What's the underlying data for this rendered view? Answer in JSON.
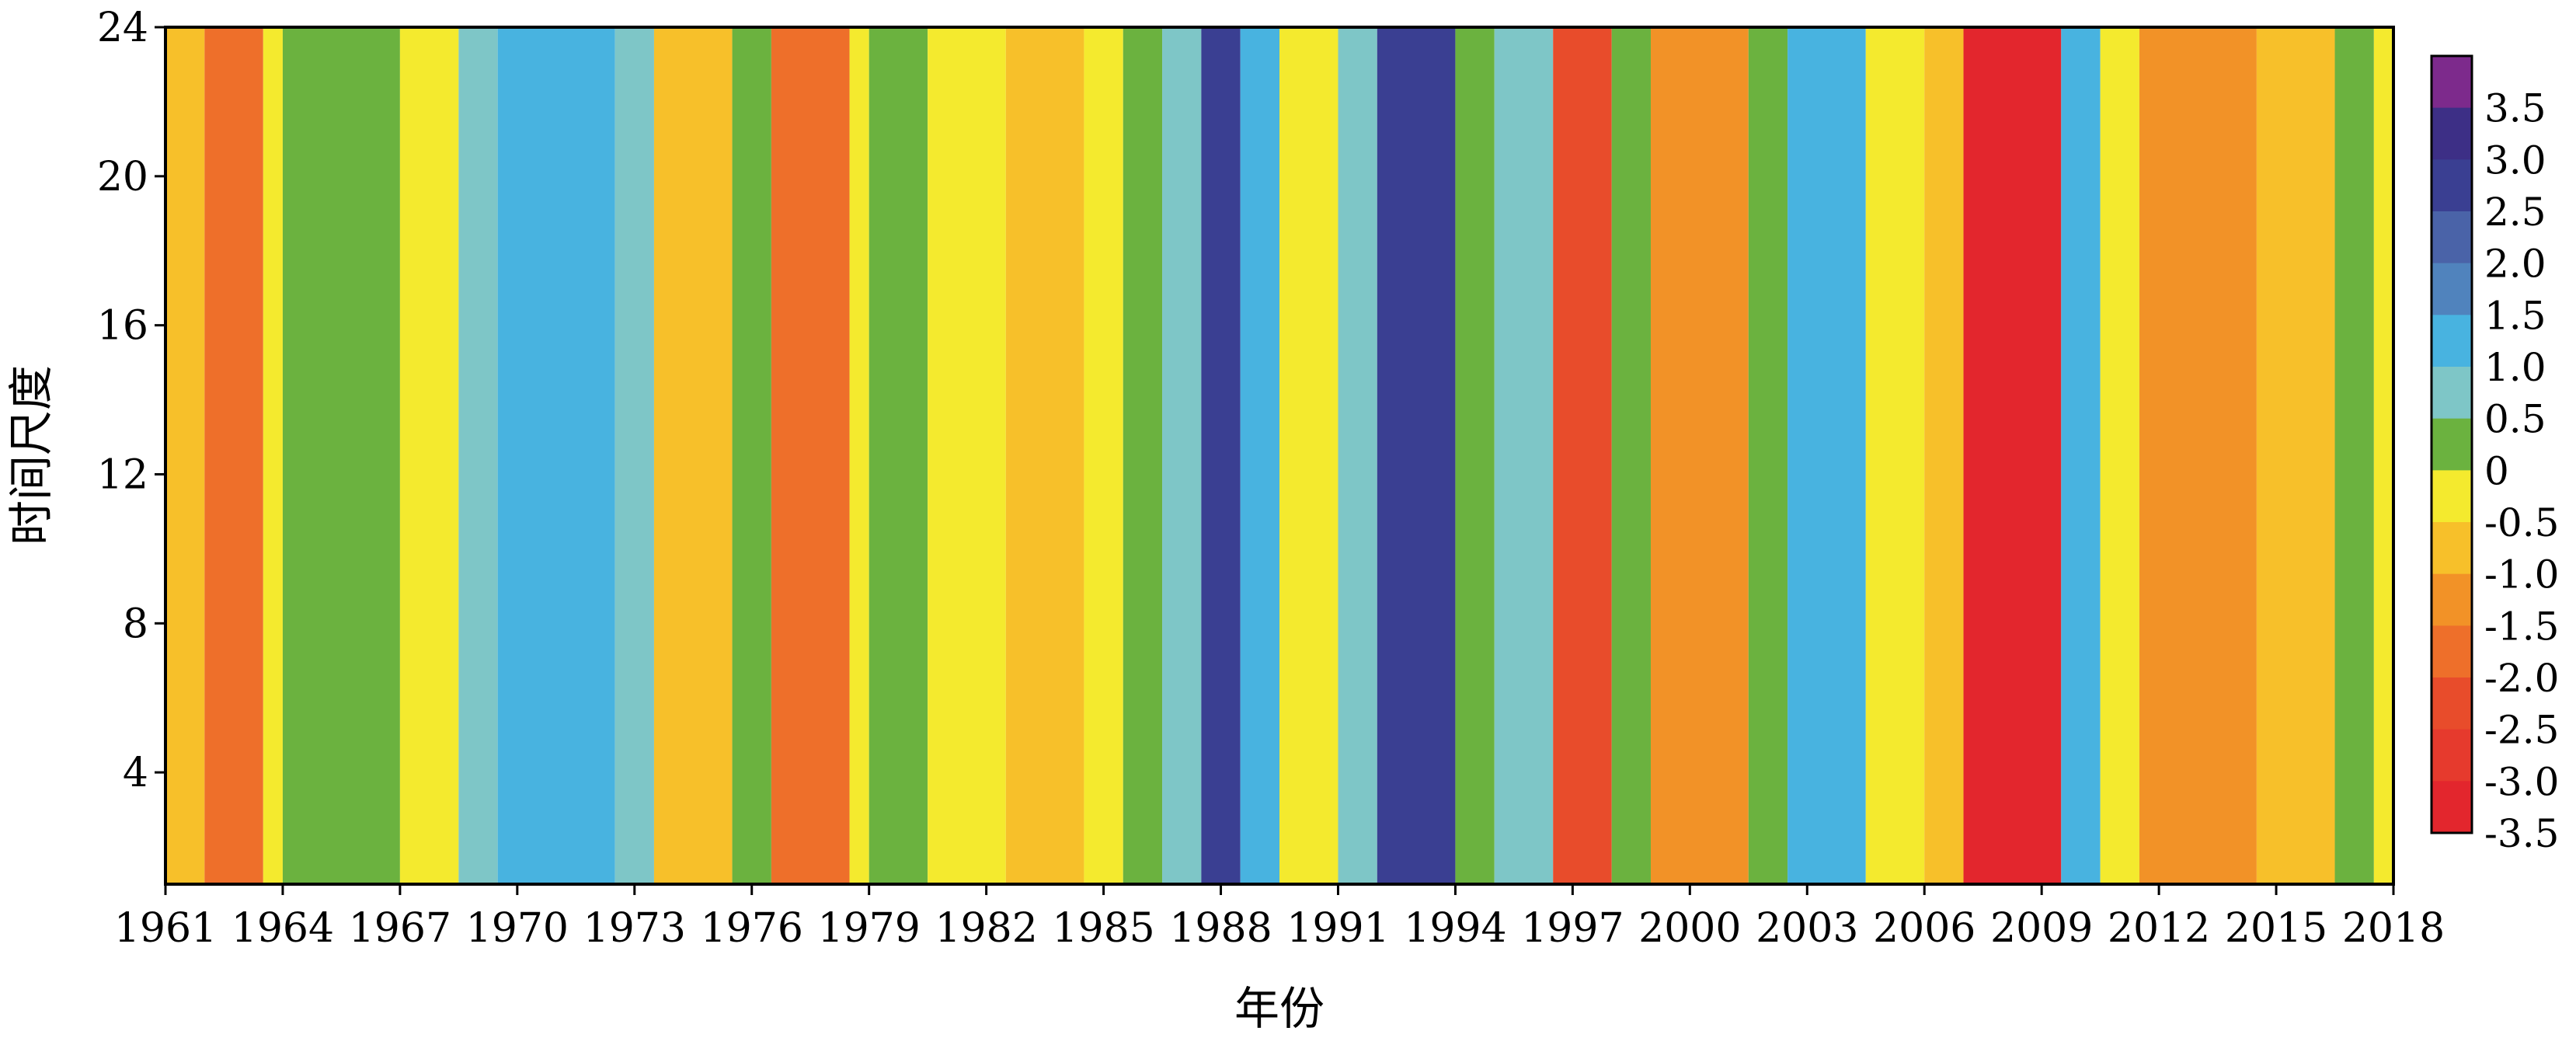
{
  "chart_data": {
    "type": "heatmap",
    "title": "",
    "xlabel": "年份",
    "ylabel": "时间尺度",
    "xlim": [
      1961,
      2018
    ],
    "ylim": [
      1,
      24
    ],
    "x_ticks": [
      "1961",
      "1964",
      "1967",
      "1970",
      "1973",
      "1976",
      "1979",
      "1982",
      "1985",
      "1988",
      "1991",
      "1994",
      "1997",
      "2000",
      "2003",
      "2006",
      "2009",
      "2012",
      "2015",
      "2018"
    ],
    "y_ticks": [
      "4",
      "8",
      "12",
      "16",
      "20",
      "24"
    ],
    "colorbar": {
      "labels": [
        "3.5",
        "3.0",
        "2.5",
        "2.0",
        "1.5",
        "1.0",
        "0.5",
        "0",
        "-0.5",
        "-1.0",
        "-1.5",
        "-2.0",
        "-2.5",
        "-3.0",
        "-3.5"
      ],
      "levels": [
        {
          "min": 3.5,
          "max": 4.0,
          "color": "#7d2a8c"
        },
        {
          "min": 3.0,
          "max": 3.5,
          "color": "#3d2f86"
        },
        {
          "min": 2.5,
          "max": 3.0,
          "color": "#3a3f92"
        },
        {
          "min": 2.0,
          "max": 2.5,
          "color": "#4a63a8"
        },
        {
          "min": 1.5,
          "max": 2.0,
          "color": "#5083bd"
        },
        {
          "min": 1.0,
          "max": 1.5,
          "color": "#48b3e0"
        },
        {
          "min": 0.5,
          "max": 1.0,
          "color": "#7ec6c7"
        },
        {
          "min": 0.0,
          "max": 0.5,
          "color": "#6bb23f"
        },
        {
          "min": -0.5,
          "max": 0.0,
          "color": "#f4ea2e"
        },
        {
          "min": -1.0,
          "max": -0.5,
          "color": "#f7c02a"
        },
        {
          "min": -1.5,
          "max": -1.0,
          "color": "#f29227"
        },
        {
          "min": -2.0,
          "max": -1.5,
          "color": "#ee6f2a"
        },
        {
          "min": -2.5,
          "max": -2.0,
          "color": "#e84c2b"
        },
        {
          "min": -3.0,
          "max": -2.5,
          "color": "#e63a2d"
        },
        {
          "min": -3.5,
          "max": -3.0,
          "color": "#e3262d"
        }
      ]
    },
    "anomaly_bands": [
      {
        "x_start": 1961.0,
        "x_end": 1962.0,
        "value": -0.8
      },
      {
        "x_start": 1962.0,
        "x_end": 1963.5,
        "value": -1.6
      },
      {
        "x_start": 1963.5,
        "x_end": 1964.0,
        "value": -0.2
      },
      {
        "x_start": 1964.0,
        "x_end": 1967.0,
        "value": 0.3
      },
      {
        "x_start": 1967.0,
        "x_end": 1968.5,
        "value": -0.3
      },
      {
        "x_start": 1968.5,
        "x_end": 1969.5,
        "value": 0.7
      },
      {
        "x_start": 1969.5,
        "x_end": 1972.5,
        "value": 1.2
      },
      {
        "x_start": 1972.5,
        "x_end": 1973.5,
        "value": 0.6
      },
      {
        "x_start": 1973.5,
        "x_end": 1975.5,
        "value": -0.9
      },
      {
        "x_start": 1975.5,
        "x_end": 1976.5,
        "value": 0.3
      },
      {
        "x_start": 1976.5,
        "x_end": 1978.5,
        "value": -1.8
      },
      {
        "x_start": 1978.5,
        "x_end": 1979.0,
        "value": -0.3
      },
      {
        "x_start": 1979.0,
        "x_end": 1980.5,
        "value": 0.3
      },
      {
        "x_start": 1980.5,
        "x_end": 1982.5,
        "value": -0.4
      },
      {
        "x_start": 1982.5,
        "x_end": 1984.5,
        "value": -0.7
      },
      {
        "x_start": 1984.5,
        "x_end": 1985.5,
        "value": -0.3
      },
      {
        "x_start": 1985.5,
        "x_end": 1986.5,
        "value": 0.3
      },
      {
        "x_start": 1986.5,
        "x_end": 1987.5,
        "value": 0.8
      },
      {
        "x_start": 1987.5,
        "x_end": 1988.5,
        "value": 2.6
      },
      {
        "x_start": 1988.5,
        "x_end": 1989.5,
        "value": 1.2
      },
      {
        "x_start": 1989.5,
        "x_end": 1991.0,
        "value": -0.3
      },
      {
        "x_start": 1991.0,
        "x_end": 1992.0,
        "value": 0.8
      },
      {
        "x_start": 1992.0,
        "x_end": 1994.0,
        "value": 2.7
      },
      {
        "x_start": 1994.0,
        "x_end": 1995.0,
        "value": 0.4
      },
      {
        "x_start": 1995.0,
        "x_end": 1996.5,
        "value": 0.7
      },
      {
        "x_start": 1996.5,
        "x_end": 1998.0,
        "value": -2.4
      },
      {
        "x_start": 1998.0,
        "x_end": 1999.0,
        "value": 0.3
      },
      {
        "x_start": 1999.0,
        "x_end": 2001.5,
        "value": -1.4
      },
      {
        "x_start": 2001.5,
        "x_end": 2002.5,
        "value": 0.3
      },
      {
        "x_start": 2002.5,
        "x_end": 2004.5,
        "value": 1.1
      },
      {
        "x_start": 2004.5,
        "x_end": 2006.0,
        "value": -0.4
      },
      {
        "x_start": 2006.0,
        "x_end": 2007.0,
        "value": -0.9
      },
      {
        "x_start": 2007.0,
        "x_end": 2009.5,
        "value": -3.1
      },
      {
        "x_start": 2009.5,
        "x_end": 2010.5,
        "value": 1.2
      },
      {
        "x_start": 2010.5,
        "x_end": 2011.5,
        "value": -0.4
      },
      {
        "x_start": 2011.5,
        "x_end": 2014.5,
        "value": -1.4
      },
      {
        "x_start": 2014.5,
        "x_end": 2016.5,
        "value": -0.8
      },
      {
        "x_start": 2016.5,
        "x_end": 2017.5,
        "value": 0.3
      },
      {
        "x_start": 2017.5,
        "x_end": 2018.0,
        "value": -0.4
      }
    ]
  }
}
